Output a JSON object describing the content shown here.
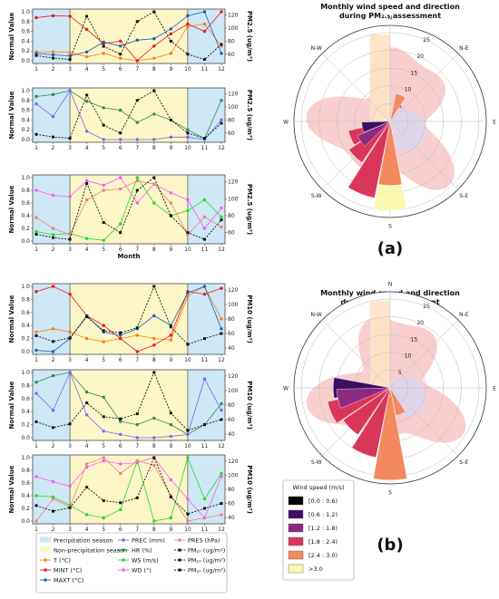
{
  "panel_labels": {
    "a": "(a)",
    "b": "(b)"
  },
  "colors": {
    "precip_season": "#cfe8f5",
    "non_precip_season": "#fdf6c8",
    "T": "#ff7f0e",
    "MINT": "#e31a1c",
    "MAXT": "#1f5fb4",
    "PREC": "#7b68ee",
    "HR": "#2e8b57",
    "WS": "#22dd22",
    "WD": "#ff55ff",
    "PRES": "#f08080",
    "PM": "#111111"
  },
  "legend": {
    "items": [
      {
        "label": "Precipitation season",
        "kind": "box",
        "color": "#cfe8f5"
      },
      {
        "label": "Non-precipitation season",
        "kind": "box",
        "color": "#fdf6c8"
      },
      {
        "label": "T (°C)",
        "kind": "line",
        "color": "#ff7f0e"
      },
      {
        "label": "MINT (°C)",
        "kind": "line",
        "color": "#e31a1c"
      },
      {
        "label": "MAXT (°C)",
        "kind": "line",
        "color": "#1f5fb4"
      },
      {
        "label": "PREC (mm)",
        "kind": "line",
        "color": "#7b68ee"
      },
      {
        "label": "HR (%)",
        "kind": "line",
        "color": "#2e8b57"
      },
      {
        "label": "WS (m/s)",
        "kind": "line",
        "color": "#22dd22"
      },
      {
        "label": "WD (°)",
        "kind": "line",
        "color": "#ff55ff"
      },
      {
        "label": "PRES (hPa)",
        "kind": "line",
        "color": "#f08080"
      },
      {
        "label": "PM₁₀ (ug/m³)",
        "kind": "dash",
        "color": "#111111"
      },
      {
        "label": "PM₁₀ (ug/m³)",
        "kind": "dash",
        "color": "#111111"
      },
      {
        "label": "PM₁₀ (ug/m³)",
        "kind": "dash",
        "color": "#111111"
      }
    ]
  },
  "wind_legend": {
    "title": "Wind speed (m/s)",
    "bins": [
      {
        "label": "[0.0 : 0.6)",
        "color": "#000000"
      },
      {
        "label": "[0.6 : 1.2)",
        "color": "#3b1060"
      },
      {
        "label": "[1.2 : 1.8)",
        "color": "#8c2a82"
      },
      {
        "label": "[1.8 : 2.4)",
        "color": "#d9365a"
      },
      {
        "label": "[2.4 : 3.0)",
        "color": "#f4895f"
      },
      {
        "label": ">3.0",
        "color": "#fbf7b0"
      }
    ]
  },
  "chart_data": [
    {
      "id": "a1",
      "type": "line",
      "months": [
        1,
        2,
        3,
        4,
        5,
        6,
        7,
        8,
        9,
        10,
        11,
        12
      ],
      "ylabel": "Normal Value",
      "y2label": "PM2.5 (ug/m³)",
      "yticks": [
        "0.0",
        "0.2",
        "0.4",
        "0.6",
        "0.8",
        "1.0"
      ],
      "ylim": [
        0,
        1
      ],
      "y2ticks": [
        "60",
        "80",
        "100",
        "120"
      ],
      "y2lim": [
        50,
        125
      ],
      "series": [
        {
          "key": "T",
          "values": [
            0.18,
            0.18,
            0.17,
            0.08,
            0.15,
            0.05,
            0.0,
            0.05,
            0.15,
            0.7,
            0.75,
            0.3
          ]
        },
        {
          "key": "MINT",
          "values": [
            0.88,
            0.92,
            0.91,
            0.64,
            0.35,
            0.4,
            0.0,
            0.3,
            0.55,
            0.75,
            0.6,
            1.0
          ]
        },
        {
          "key": "MAXT",
          "values": [
            0.15,
            0.12,
            0.1,
            0.18,
            0.38,
            0.3,
            0.42,
            0.45,
            0.65,
            0.92,
            1.0,
            0.15
          ]
        },
        {
          "key": "PM",
          "dashed": true,
          "values": [
            58,
            54,
            52,
            118,
            72,
            60,
            110,
            125,
            80,
            60,
            52,
            75
          ]
        }
      ]
    },
    {
      "id": "a2",
      "type": "line",
      "months": [
        1,
        2,
        3,
        4,
        5,
        6,
        7,
        8,
        9,
        10,
        11,
        12
      ],
      "ylabel": "Normal Value",
      "y2label": "PM2.5 (ug/m³)",
      "yticks": [
        "0.0",
        "0.2",
        "0.4",
        "0.6",
        "0.8",
        "1.0"
      ],
      "ylim": [
        0,
        1
      ],
      "y2ticks": [
        "60",
        "80",
        "100",
        "120"
      ],
      "y2lim": [
        50,
        125
      ],
      "series": [
        {
          "key": "HR",
          "values": [
            0.88,
            0.92,
            1.0,
            0.78,
            0.65,
            0.6,
            0.35,
            0.52,
            0.4,
            0.2,
            0.02,
            0.8
          ]
        },
        {
          "key": "PREC",
          "values": [
            0.73,
            0.47,
            1.0,
            0.17,
            0.0,
            0.0,
            0.0,
            0.0,
            0.05,
            0.05,
            0.0,
            0.4
          ]
        },
        {
          "key": "PM",
          "dashed": true,
          "values": [
            58,
            54,
            52,
            118,
            72,
            60,
            110,
            125,
            80,
            60,
            52,
            75
          ]
        }
      ]
    },
    {
      "id": "a3",
      "type": "line",
      "months": [
        1,
        2,
        3,
        4,
        5,
        6,
        7,
        8,
        9,
        10,
        11,
        12
      ],
      "xlabel": "Month",
      "ylabel": "Normal Value",
      "y2label": "PM2.5 (ug/m³)",
      "yticks": [
        "0.0",
        "0.2",
        "0.4",
        "0.6",
        "0.8",
        "1.0"
      ],
      "ylim": [
        0,
        1
      ],
      "y2ticks": [
        "60",
        "80",
        "100",
        "120"
      ],
      "y2lim": [
        50,
        125
      ],
      "series": [
        {
          "key": "WD",
          "values": [
            0.8,
            0.72,
            0.7,
            0.95,
            0.88,
            1.0,
            0.6,
            0.9,
            0.76,
            0.65,
            0.2,
            0.52
          ]
        },
        {
          "key": "WS",
          "values": [
            0.15,
            0.1,
            0.12,
            0.04,
            0.01,
            0.27,
            1.0,
            0.6,
            0.4,
            0.48,
            0.65,
            0.38
          ]
        },
        {
          "key": "PRES",
          "values": [
            0.37,
            0.2,
            0.1,
            0.65,
            0.8,
            0.82,
            0.95,
            0.9,
            0.6,
            0.1,
            0.38,
            0.22
          ]
        },
        {
          "key": "PM",
          "dashed": true,
          "values": [
            58,
            54,
            52,
            118,
            72,
            60,
            110,
            125,
            80,
            60,
            52,
            75
          ]
        }
      ]
    },
    {
      "id": "b1",
      "type": "line",
      "months": [
        1,
        2,
        3,
        4,
        5,
        6,
        7,
        8,
        9,
        10,
        11,
        12
      ],
      "ylabel": "Normal Value",
      "y2label": "PM10 (ug/m³)",
      "yticks": [
        "0.0",
        "0.2",
        "0.4",
        "0.6",
        "0.8",
        "1.0"
      ],
      "ylim": [
        0,
        1
      ],
      "y2ticks": [
        "40",
        "60",
        "80",
        "100",
        "120"
      ],
      "y2lim": [
        35,
        125
      ],
      "series": [
        {
          "key": "T",
          "values": [
            0.3,
            0.35,
            0.3,
            0.2,
            0.15,
            0.2,
            0.25,
            0.2,
            0.18,
            0.85,
            1.0,
            0.5
          ]
        },
        {
          "key": "MINT",
          "values": [
            0.92,
            1.0,
            0.88,
            0.55,
            0.4,
            0.2,
            0.0,
            0.1,
            0.25,
            0.92,
            0.88,
            0.97
          ]
        },
        {
          "key": "MAXT",
          "values": [
            0.02,
            0.0,
            0.2,
            0.55,
            0.3,
            0.25,
            0.35,
            0.55,
            0.4,
            0.9,
            1.0,
            0.35
          ]
        },
        {
          "key": "PM",
          "dashed": true,
          "values": [
            57,
            49,
            54,
            83,
            64,
            61,
            68,
            125,
            69,
            45,
            53,
            60
          ]
        }
      ]
    },
    {
      "id": "b2",
      "type": "line",
      "months": [
        1,
        2,
        3,
        4,
        5,
        6,
        7,
        8,
        9,
        10,
        11,
        12
      ],
      "ylabel": "Normal Value",
      "y2label": "PM10 (ug/m³)",
      "yticks": [
        "0.0",
        "0.2",
        "0.4",
        "0.6",
        "0.8",
        "1.0"
      ],
      "ylim": [
        0,
        1
      ],
      "y2ticks": [
        "40",
        "60",
        "80",
        "100",
        "120"
      ],
      "y2lim": [
        35,
        125
      ],
      "series": [
        {
          "key": "HR",
          "values": [
            0.85,
            0.95,
            1.0,
            0.7,
            0.62,
            0.25,
            0.2,
            0.3,
            0.2,
            0.05,
            0.2,
            0.52
          ]
        },
        {
          "key": "PREC",
          "values": [
            0.68,
            0.42,
            1.0,
            0.35,
            0.1,
            0.05,
            0.0,
            0.0,
            0.02,
            0.05,
            0.9,
            0.42
          ]
        },
        {
          "key": "PM",
          "dashed": true,
          "values": [
            57,
            49,
            54,
            83,
            64,
            61,
            68,
            125,
            69,
            45,
            53,
            60
          ]
        }
      ]
    },
    {
      "id": "b3",
      "type": "line",
      "months": [
        1,
        2,
        3,
        4,
        5,
        6,
        7,
        8,
        9,
        10,
        11,
        12
      ],
      "xlabel": "Month",
      "ylabel": "Normal Value",
      "y2label": "PM10 (ug/m³)",
      "yticks": [
        "0.0",
        "0.2",
        "0.4",
        "0.6",
        "0.8",
        "1.0"
      ],
      "ylim": [
        0,
        1
      ],
      "y2ticks": [
        "40",
        "60",
        "80",
        "100",
        "120"
      ],
      "y2lim": [
        35,
        125
      ],
      "series": [
        {
          "key": "WD",
          "values": [
            0.7,
            0.62,
            0.55,
            0.85,
            0.95,
            0.9,
            0.92,
            1.0,
            0.65,
            0.35,
            0.05,
            0.7
          ]
        },
        {
          "key": "WS",
          "values": [
            0.4,
            0.38,
            0.25,
            0.1,
            0.05,
            0.18,
            0.95,
            0.0,
            0.05,
            1.0,
            0.35,
            0.75
          ]
        },
        {
          "key": "PRES",
          "values": [
            0.0,
            0.35,
            0.22,
            0.9,
            1.0,
            0.75,
            0.95,
            0.88,
            0.4,
            0.0,
            0.05,
            0.1
          ]
        },
        {
          "key": "PM",
          "dashed": true,
          "values": [
            57,
            49,
            54,
            83,
            64,
            61,
            68,
            125,
            69,
            45,
            53,
            60
          ]
        }
      ]
    },
    {
      "id": "rose-a",
      "type": "wind-rose",
      "title": "Monthly wind speed and direction during PM₂.₅ assessment",
      "radial_ticks": [
        "5",
        "10",
        "15",
        "20",
        "25"
      ],
      "rmax": 25,
      "directions": [
        "N",
        "N-E",
        "E",
        "S-E",
        "S",
        "S-W",
        "W",
        "N-W"
      ],
      "sectors": [
        {
          "dir_deg": 180,
          "speed_bin": 5,
          "r": 25
        },
        {
          "dir_deg": 180,
          "speed_bin": 4,
          "r": 18
        },
        {
          "dir_deg": 202,
          "speed_bin": 3,
          "r": 22
        },
        {
          "dir_deg": 225,
          "speed_bin": 3,
          "r": 14
        },
        {
          "dir_deg": 247,
          "speed_bin": 3,
          "r": 12
        },
        {
          "dir_deg": 236,
          "speed_bin": 2,
          "r": 10
        },
        {
          "dir_deg": 258,
          "speed_bin": 1,
          "r": 8
        },
        {
          "dir_deg": 22,
          "speed_bin": 4,
          "r": 8
        }
      ]
    },
    {
      "id": "rose-b",
      "type": "wind-rose",
      "title": "Monthly wind speed and direction during PM₁₀ assessment",
      "radial_ticks": [
        "5",
        "10",
        "15",
        "20",
        "25"
      ],
      "rmax": 25,
      "directions": [
        "N",
        "N-E",
        "E",
        "S-E",
        "S",
        "S-W",
        "W",
        "N-W"
      ],
      "sectors": [
        {
          "dir_deg": 180,
          "speed_bin": 4,
          "r": 26
        },
        {
          "dir_deg": 202,
          "speed_bin": 3,
          "r": 20
        },
        {
          "dir_deg": 225,
          "speed_bin": 3,
          "r": 16
        },
        {
          "dir_deg": 247,
          "speed_bin": 3,
          "r": 18
        },
        {
          "dir_deg": 270,
          "speed_bin": 1,
          "r": 16
        },
        {
          "dir_deg": 258,
          "speed_bin": 2,
          "r": 15
        },
        {
          "dir_deg": 158,
          "speed_bin": 4,
          "r": 8
        }
      ]
    }
  ]
}
